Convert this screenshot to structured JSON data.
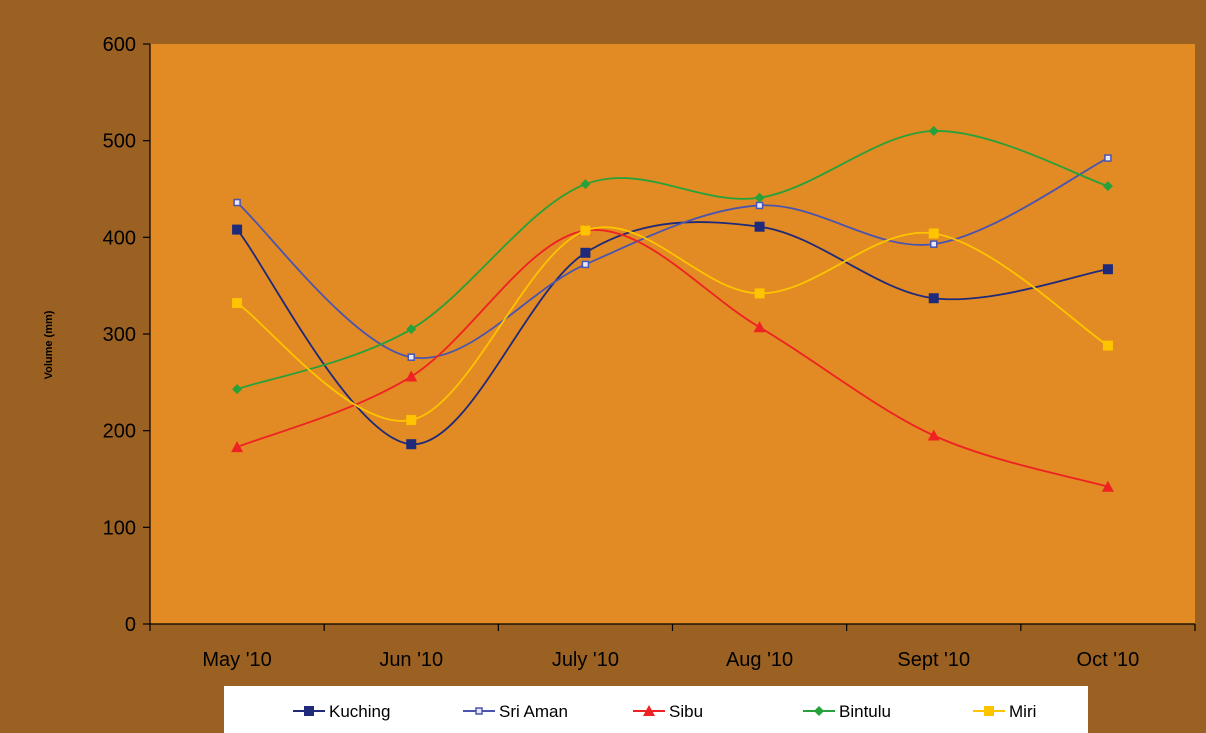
{
  "chart_data": {
    "type": "line",
    "title": "",
    "xlabel": "",
    "ylabel": "Volume (mm)",
    "categories": [
      "May '10",
      "Jun '10",
      "July '10",
      "Aug '10",
      "Sept '10",
      "Oct '10"
    ],
    "ylim": [
      0,
      600
    ],
    "yticks": [
      "0",
      "100",
      "200",
      "300",
      "400",
      "500",
      "600"
    ],
    "smooth": true,
    "grid": false,
    "legend_position": "bottom",
    "colors": {
      "frame": "#9B6122",
      "plot_area": "#E28A23",
      "legend_bg": "#FFFFFF",
      "axis": "#000000"
    },
    "series": [
      {
        "name": "Kuching",
        "color": "#1F2A7A",
        "marker": "square",
        "values": [
          408,
          186,
          384,
          411,
          337,
          367
        ]
      },
      {
        "name": "Sri Aman",
        "color": "#4A55B0",
        "marker": "open-square",
        "values": [
          436,
          276,
          372,
          433,
          393,
          482
        ]
      },
      {
        "name": "Sibu",
        "color": "#EE2222",
        "marker": "triangle",
        "values": [
          183,
          256,
          407,
          307,
          195,
          142
        ]
      },
      {
        "name": "Bintulu",
        "color": "#27A13A",
        "marker": "diamond",
        "values": [
          243,
          305,
          455,
          441,
          510,
          453
        ]
      },
      {
        "name": "Miri",
        "color": "#FFC400",
        "marker": "square",
        "values": [
          332,
          211,
          407,
          342,
          404,
          288
        ]
      }
    ]
  }
}
